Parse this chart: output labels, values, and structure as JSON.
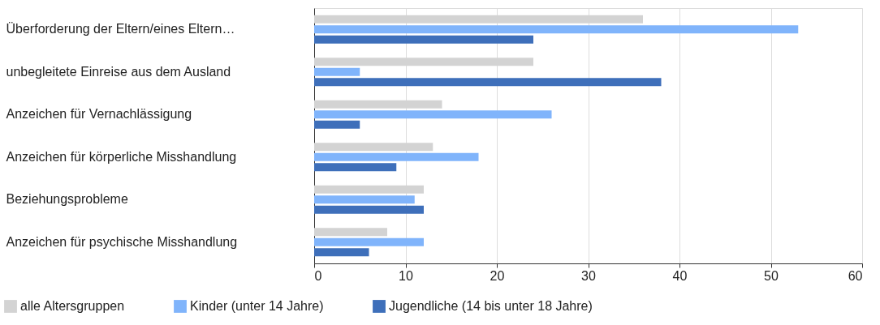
{
  "chart_data": {
    "type": "bar",
    "orientation": "horizontal",
    "categories": [
      "Überforderung der Eltern/eines Eltern…",
      "unbegleitete Einreise aus dem Ausland",
      "Anzeichen für Vernachlässigung",
      "Anzeichen für körperliche Misshandlung",
      "Beziehungsprobleme",
      "Anzeichen für psychische Misshandlung"
    ],
    "series": [
      {
        "name": "alle Altersgruppen",
        "color": "#d3d3d3",
        "values": [
          36,
          24,
          14,
          13,
          12,
          8
        ]
      },
      {
        "name": "Kinder (unter 14 Jahre)",
        "color": "#80b4fb",
        "values": [
          53,
          5,
          26,
          18,
          11,
          12
        ]
      },
      {
        "name": "Jugendliche (14 bis unter 18 Jahre)",
        "color": "#3e6fba",
        "values": [
          24,
          38,
          5,
          9,
          12,
          6
        ]
      }
    ],
    "xlim": [
      0,
      60
    ],
    "xticks": [
      0,
      10,
      20,
      30,
      40,
      50,
      60
    ],
    "grid": "x",
    "legend": "bottom left"
  }
}
